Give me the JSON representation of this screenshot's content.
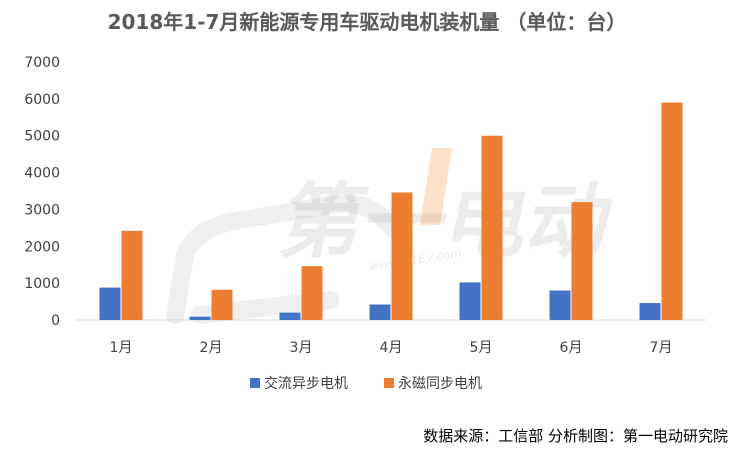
{
  "chart_data": {
    "type": "bar",
    "title": "2018年1-7月新能源专用车驱动电机装机量 （单位：台）",
    "categories": [
      "1月",
      "2月",
      "3月",
      "4月",
      "5月",
      "6月",
      "7月"
    ],
    "series": [
      {
        "name": "交流异步电机",
        "color": "#4472C4",
        "values": [
          880,
          90,
          200,
          420,
          1020,
          800,
          460
        ]
      },
      {
        "name": "永磁同步电机",
        "color": "#ED7D31",
        "values": [
          2420,
          820,
          1460,
          3460,
          5000,
          3200,
          5900
        ]
      }
    ],
    "ylim": [
      0,
      7000
    ],
    "yticks": [
      0,
      1000,
      2000,
      3000,
      4000,
      5000,
      6000,
      7000
    ],
    "grid": false,
    "legend_position": "bottom",
    "xlabel": "",
    "ylabel": ""
  },
  "watermark": {
    "brand": "第一电动",
    "url": "www.D1EV.com"
  },
  "footer": {
    "source": "数据来源：工信部  分析制图：第一电动研究院"
  }
}
